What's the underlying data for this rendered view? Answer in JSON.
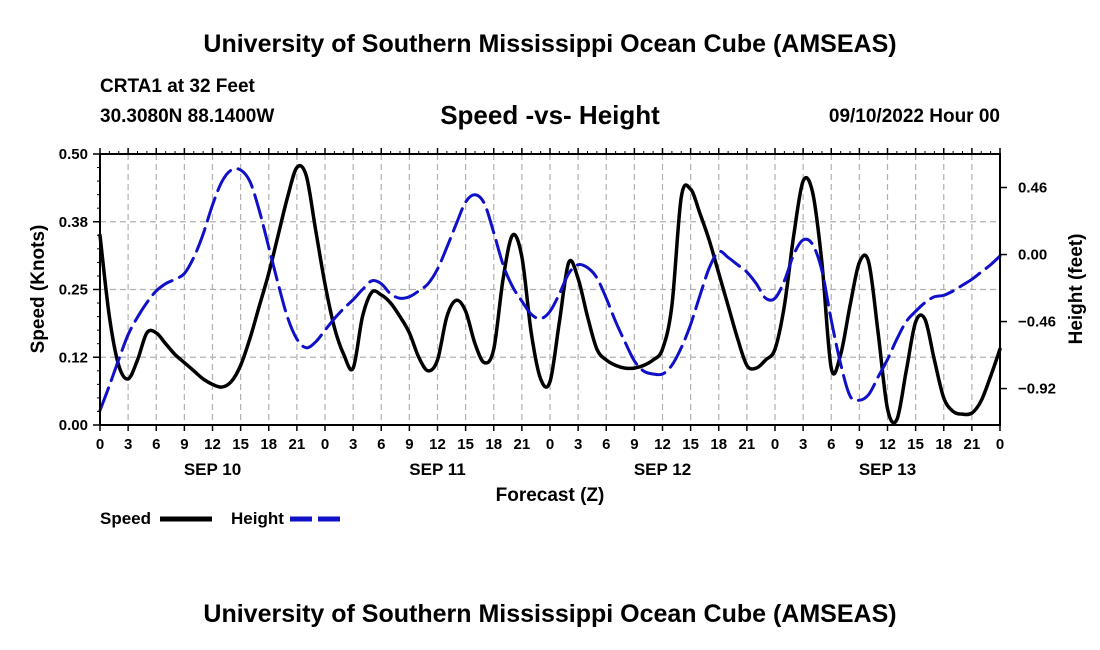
{
  "header": {
    "title": "University of Southern Mississippi Ocean Cube (AMSEAS)",
    "station": "CRTA1 at 32 Feet",
    "coords": "30.3080N  88.1400W",
    "chart_title": "Speed -vs- Height",
    "timestamp": "09/10/2022 Hour 00"
  },
  "footer": {
    "title": "University of Southern Mississippi Ocean Cube (AMSEAS)"
  },
  "legend": {
    "speed_label": "Speed",
    "height_label": "Height"
  },
  "colors": {
    "speed": "#000000",
    "height": "#1010c8",
    "grid": "#b0b0b0"
  },
  "chart_data": {
    "type": "line",
    "title": "Speed -vs- Height",
    "xlabel": "Forecast (Z)",
    "ylabel": "Speed (Knots)",
    "y2label": "Height (feet)",
    "x_range_hours": [
      0,
      96
    ],
    "ylim": [
      0,
      0.5
    ],
    "y2lim": [
      -1.17,
      0.69
    ],
    "y_ticks": [
      {
        "value": 0.0,
        "label": "0.00"
      },
      {
        "value": 0.125,
        "label": "0.12"
      },
      {
        "value": 0.25,
        "label": "0.25"
      },
      {
        "value": 0.375,
        "label": "0.38"
      },
      {
        "value": 0.5,
        "label": "0.50"
      }
    ],
    "y2_ticks": [
      {
        "value": 0.46,
        "label": "0.46"
      },
      {
        "value": 0.0,
        "label": "0.00"
      },
      {
        "value": -0.46,
        "label": "−0.46"
      },
      {
        "value": -0.92,
        "label": "−0.92"
      }
    ],
    "x_ticks": [
      {
        "hour": 0,
        "label": "0"
      },
      {
        "hour": 3,
        "label": "3"
      },
      {
        "hour": 6,
        "label": "6"
      },
      {
        "hour": 9,
        "label": "9"
      },
      {
        "hour": 12,
        "label": "12"
      },
      {
        "hour": 15,
        "label": "15"
      },
      {
        "hour": 18,
        "label": "18"
      },
      {
        "hour": 21,
        "label": "21"
      },
      {
        "hour": 24,
        "label": "0"
      },
      {
        "hour": 27,
        "label": "3"
      },
      {
        "hour": 30,
        "label": "6"
      },
      {
        "hour": 33,
        "label": "9"
      },
      {
        "hour": 36,
        "label": "12"
      },
      {
        "hour": 39,
        "label": "15"
      },
      {
        "hour": 42,
        "label": "18"
      },
      {
        "hour": 45,
        "label": "21"
      },
      {
        "hour": 48,
        "label": "0"
      },
      {
        "hour": 51,
        "label": "3"
      },
      {
        "hour": 54,
        "label": "6"
      },
      {
        "hour": 57,
        "label": "9"
      },
      {
        "hour": 60,
        "label": "12"
      },
      {
        "hour": 63,
        "label": "15"
      },
      {
        "hour": 66,
        "label": "18"
      },
      {
        "hour": 69,
        "label": "21"
      },
      {
        "hour": 72,
        "label": "0"
      },
      {
        "hour": 75,
        "label": "3"
      },
      {
        "hour": 78,
        "label": "6"
      },
      {
        "hour": 81,
        "label": "9"
      },
      {
        "hour": 84,
        "label": "12"
      },
      {
        "hour": 87,
        "label": "15"
      },
      {
        "hour": 90,
        "label": "18"
      },
      {
        "hour": 93,
        "label": "21"
      },
      {
        "hour": 96,
        "label": "0"
      }
    ],
    "date_labels": [
      {
        "hour": 12,
        "label": "SEP 10"
      },
      {
        "hour": 36,
        "label": "SEP 11"
      },
      {
        "hour": 60,
        "label": "SEP 12"
      },
      {
        "hour": 84,
        "label": "SEP 13"
      }
    ],
    "series": [
      {
        "name": "Speed",
        "axis": "left",
        "hours": [
          0,
          1,
          2,
          3,
          4,
          5,
          6,
          7,
          8,
          9,
          10,
          11,
          12,
          13,
          14,
          15,
          16,
          17,
          18,
          19,
          20,
          21,
          22,
          23,
          24,
          25,
          26,
          27,
          28,
          29,
          30,
          31,
          32,
          33,
          34,
          35,
          36,
          37,
          38,
          39,
          40,
          41,
          42,
          43,
          44,
          45,
          46,
          47,
          48,
          49,
          50,
          51,
          52,
          53,
          54,
          55,
          56,
          57,
          58,
          59,
          60,
          61,
          62,
          63,
          64,
          65,
          66,
          67,
          68,
          69,
          70,
          71,
          72,
          73,
          74,
          75,
          76,
          77,
          78,
          79,
          80,
          81,
          82,
          83,
          84,
          85,
          86,
          87,
          88,
          89,
          90,
          91,
          92,
          93,
          94,
          95,
          96
        ],
        "values": [
          0.35,
          0.2,
          0.11,
          0.085,
          0.12,
          0.17,
          0.17,
          0.15,
          0.13,
          0.115,
          0.1,
          0.085,
          0.075,
          0.07,
          0.08,
          0.11,
          0.16,
          0.22,
          0.28,
          0.35,
          0.42,
          0.475,
          0.46,
          0.36,
          0.26,
          0.18,
          0.13,
          0.105,
          0.2,
          0.245,
          0.24,
          0.225,
          0.2,
          0.17,
          0.125,
          0.1,
          0.12,
          0.2,
          0.23,
          0.21,
          0.15,
          0.115,
          0.14,
          0.27,
          0.35,
          0.31,
          0.17,
          0.085,
          0.08,
          0.19,
          0.3,
          0.27,
          0.2,
          0.14,
          0.12,
          0.11,
          0.105,
          0.105,
          0.11,
          0.12,
          0.14,
          0.22,
          0.42,
          0.435,
          0.39,
          0.34,
          0.28,
          0.22,
          0.16,
          0.11,
          0.105,
          0.12,
          0.14,
          0.22,
          0.35,
          0.45,
          0.43,
          0.3,
          0.105,
          0.13,
          0.22,
          0.3,
          0.3,
          0.17,
          0.03,
          0.01,
          0.1,
          0.19,
          0.195,
          0.12,
          0.05,
          0.025,
          0.02,
          0.022,
          0.045,
          0.09,
          0.14
        ]
      },
      {
        "name": "Height",
        "axis": "right",
        "hours": [
          0,
          1,
          2,
          3,
          4,
          5,
          6,
          7,
          8,
          9,
          10,
          11,
          12,
          13,
          14,
          15,
          16,
          17,
          18,
          19,
          20,
          21,
          22,
          23,
          24,
          25,
          26,
          27,
          28,
          29,
          30,
          31,
          32,
          33,
          34,
          35,
          36,
          37,
          38,
          39,
          40,
          41,
          42,
          43,
          44,
          45,
          46,
          47,
          48,
          49,
          50,
          51,
          52,
          53,
          54,
          55,
          56,
          57,
          58,
          59,
          60,
          61,
          62,
          63,
          64,
          65,
          66,
          67,
          68,
          69,
          70,
          71,
          72,
          73,
          74,
          75,
          76,
          77,
          78,
          79,
          80,
          81,
          82,
          83,
          84,
          85,
          86,
          87,
          88,
          89,
          90,
          91,
          92,
          93,
          94,
          95,
          96
        ],
        "values": [
          -1.07,
          -0.9,
          -0.72,
          -0.55,
          -0.43,
          -0.33,
          -0.25,
          -0.2,
          -0.17,
          -0.13,
          -0.02,
          0.14,
          0.34,
          0.5,
          0.58,
          0.58,
          0.5,
          0.3,
          0.05,
          -0.2,
          -0.43,
          -0.58,
          -0.64,
          -0.6,
          -0.52,
          -0.44,
          -0.37,
          -0.31,
          -0.24,
          -0.18,
          -0.2,
          -0.27,
          -0.3,
          -0.29,
          -0.25,
          -0.2,
          -0.1,
          0.05,
          0.21,
          0.36,
          0.41,
          0.35,
          0.15,
          -0.07,
          -0.22,
          -0.32,
          -0.41,
          -0.44,
          -0.39,
          -0.27,
          -0.13,
          -0.07,
          -0.09,
          -0.16,
          -0.3,
          -0.46,
          -0.6,
          -0.73,
          -0.8,
          -0.82,
          -0.82,
          -0.76,
          -0.64,
          -0.48,
          -0.28,
          -0.09,
          0.02,
          -0.02,
          -0.07,
          -0.12,
          -0.2,
          -0.3,
          -0.3,
          -0.18,
          0.0,
          0.1,
          0.07,
          -0.11,
          -0.45,
          -0.75,
          -0.97,
          -1.0,
          -0.96,
          -0.84,
          -0.72,
          -0.58,
          -0.46,
          -0.39,
          -0.33,
          -0.29,
          -0.28,
          -0.25,
          -0.21,
          -0.17,
          -0.12,
          -0.07,
          -0.01
        ]
      }
    ]
  }
}
